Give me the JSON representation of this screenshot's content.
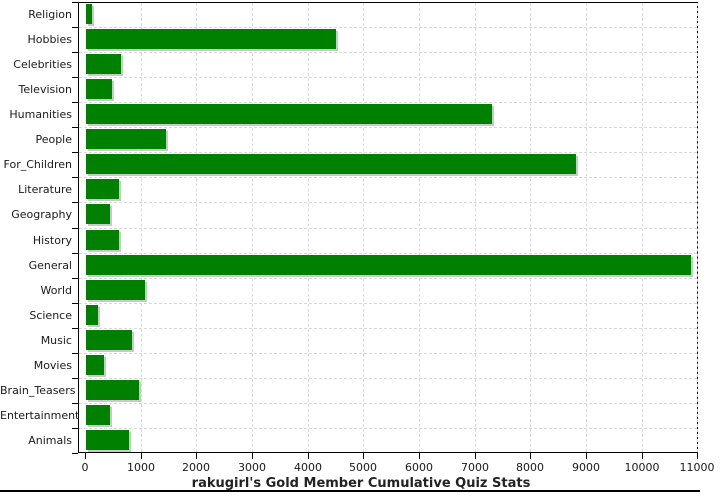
{
  "title": "rakugirl's Gold Member Cumulative Quiz Stats",
  "chart_data": {
    "type": "bar",
    "orientation": "horizontal",
    "title": "rakugirl's Gold Member Cumulative Quiz Stats",
    "categories": [
      "Religion",
      "Hobbies",
      "Celebrities",
      "Television",
      "Humanities",
      "People",
      "For_Children",
      "Literature",
      "Geography",
      "History",
      "General",
      "World",
      "Science",
      "Music",
      "Movies",
      "Brain_Teasers",
      "Entertainment",
      "Animals"
    ],
    "values": [
      110,
      4500,
      620,
      460,
      7300,
      1430,
      8800,
      590,
      430,
      590,
      10870,
      1060,
      210,
      830,
      320,
      950,
      440,
      780
    ],
    "x_ticks": [
      0,
      1000,
      2000,
      3000,
      4000,
      5000,
      6000,
      7000,
      8000,
      9000,
      10000,
      11000
    ],
    "x_tick_labels": [
      "0",
      "1000",
      "2000",
      "3000",
      "4000",
      "5000",
      "6000",
      "7000",
      "8000",
      "9000",
      "10000",
      "11000"
    ],
    "xlim": [
      0,
      11000
    ],
    "grid": true,
    "legend": false,
    "bar_color": "#008000",
    "bar_shadow_color": "#c9c9c9",
    "grid_color": "#d9d9d9",
    "axis_color": "#000000"
  }
}
